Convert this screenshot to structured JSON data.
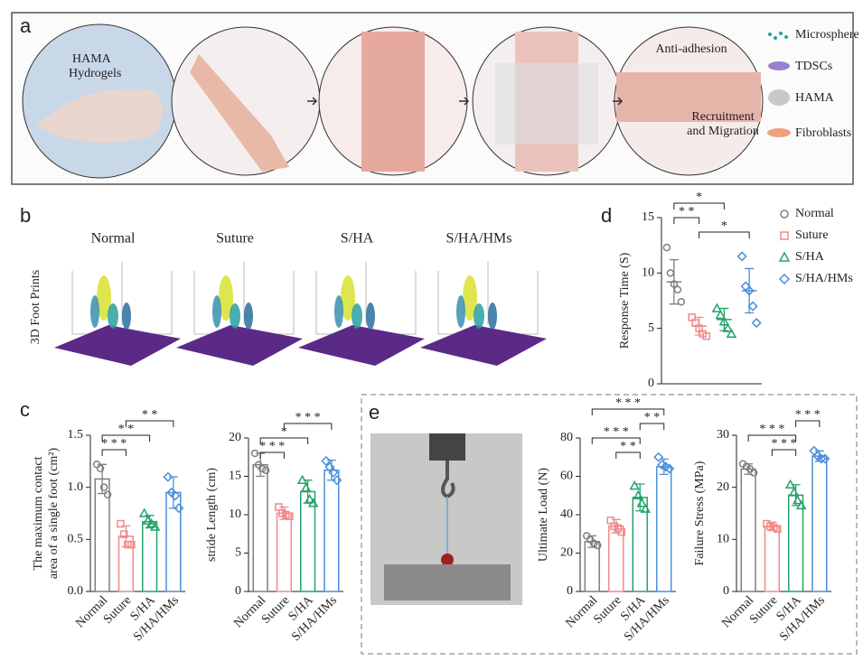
{
  "panel_labels": [
    "a",
    "b",
    "c",
    "d",
    "e"
  ],
  "panel_a": {
    "hydrogel_label": [
      "HAMA",
      "Hydrogels"
    ],
    "anti_adhesion": "Anti-adhesion",
    "recruitment": [
      "Recruitment",
      "and Migration"
    ],
    "legend": [
      "Microsphere",
      "TDSCs",
      "HAMA",
      "Fibroblasts"
    ]
  },
  "panel_b": {
    "row_label": "3D Foot Prints",
    "columns": [
      "Normal",
      "Suture",
      "S/HA",
      "S/HA/HMs"
    ]
  },
  "chart_data": [
    {
      "type": "bar",
      "y_label": [
        "The maximum contact",
        "area of a single foot (cm²)"
      ],
      "categories": [
        "Normal",
        "Suture",
        "S/HA",
        "S/HA/HMs"
      ],
      "colors": [
        "#7f7f7f",
        "#f08a8a",
        "#23a36a",
        "#4a8fd8"
      ],
      "markers": [
        "circle",
        "square",
        "triangle",
        "diamond"
      ],
      "values": [
        1.08,
        0.53,
        0.67,
        0.95
      ],
      "errors": [
        0.14,
        0.1,
        0.06,
        0.15
      ],
      "points": [
        [
          1.22,
          1.18,
          1.0,
          0.93
        ],
        [
          0.65,
          0.55,
          0.45,
          0.45
        ],
        [
          0.75,
          0.68,
          0.65,
          0.62
        ],
        [
          1.1,
          0.95,
          0.92,
          0.8
        ]
      ],
      "ylim": [
        0,
        1.5
      ],
      "yticks": [
        {
          "value": 0,
          "label": "0.0"
        },
        0.5,
        {
          "value": 1,
          "label": "1.0"
        },
        1.5
      ],
      "annotations": [
        {
          "label": "* * *",
          "groups": [
            "Normal",
            "Suture"
          ]
        },
        {
          "label": "* *",
          "groups": [
            "Normal",
            "S/HA"
          ]
        },
        {
          "label": "* *",
          "groups": [
            "Suture",
            "S/HA/HMs"
          ]
        }
      ]
    },
    {
      "type": "bar",
      "y_label": [
        "stride Length (cm)"
      ],
      "categories": [
        "Normal",
        "Suture",
        "S/HA",
        "S/HA/HMs"
      ],
      "colors": [
        "#7f7f7f",
        "#f08a8a",
        "#23a36a",
        "#4a8fd8"
      ],
      "markers": [
        "circle",
        "square",
        "triangle",
        "diamond"
      ],
      "values": [
        16.5,
        10.2,
        13,
        15.8
      ],
      "errors": [
        1.5,
        0.8,
        1.5,
        1.3
      ],
      "points": [
        [
          18,
          16.5,
          16,
          15.8
        ],
        [
          11,
          10.2,
          10,
          9.8
        ],
        [
          14.5,
          13.5,
          12,
          11.5
        ],
        [
          17,
          16.2,
          15.5,
          14.5
        ]
      ],
      "ylim": [
        0,
        20
      ],
      "yticks": [
        0,
        5,
        10,
        15,
        20
      ],
      "annotations": [
        {
          "label": "* * *",
          "groups": [
            "Normal",
            "Suture"
          ]
        },
        {
          "label": "*",
          "groups": [
            "Normal",
            "S/HA"
          ]
        },
        {
          "label": "* * *",
          "groups": [
            "Suture",
            "S/HA/HMs"
          ]
        }
      ]
    },
    {
      "type": "dot",
      "y_label": [
        "Response Time (S)"
      ],
      "legend": "right",
      "categories": [
        "Normal",
        "Suture",
        "S/HA",
        "S/HA/HMs"
      ],
      "colors": [
        "#7f7f7f",
        "#f08a8a",
        "#23a36a",
        "#4a8fd8"
      ],
      "markers": [
        "circle",
        "square",
        "triangle",
        "diamond"
      ],
      "values": [
        9.2,
        5.2,
        5.8,
        8.4
      ],
      "errors": [
        2,
        0.8,
        1,
        2
      ],
      "points": [
        [
          12.3,
          10,
          9,
          8.5,
          7.4
        ],
        [
          6,
          5.5,
          5,
          4.5,
          4.3
        ],
        [
          6.8,
          6.2,
          5.6,
          5,
          4.5
        ],
        [
          11.5,
          8.8,
          8.4,
          7,
          5.5
        ]
      ],
      "ylim": [
        0,
        15
      ],
      "yticks": [
        0,
        5,
        10,
        15
      ],
      "annotations": [
        {
          "label": "*",
          "groups": [
            "Suture",
            "S/HA/HMs"
          ]
        },
        {
          "label": "* *",
          "groups": [
            "Normal",
            "Suture"
          ]
        },
        {
          "label": "*",
          "groups": [
            "Normal",
            "S/HA"
          ]
        }
      ]
    },
    {
      "type": "bar",
      "y_label": [
        "Ultimate Load (N)"
      ],
      "categories": [
        "Normal",
        "Suture",
        "S/HA",
        "S/HA/HMs"
      ],
      "colors": [
        "#7f7f7f",
        "#f08a8a",
        "#23a36a",
        "#4a8fd8"
      ],
      "markers": [
        "circle",
        "square",
        "triangle",
        "diamond"
      ],
      "values": [
        26,
        34,
        49,
        65
      ],
      "errors": [
        3,
        3.5,
        7,
        4
      ],
      "points": [
        [
          29,
          27,
          25,
          24
        ],
        [
          37,
          34,
          33,
          31
        ],
        [
          55,
          50,
          46,
          43
        ],
        [
          70,
          66,
          65,
          64
        ]
      ],
      "ylim": [
        0,
        80
      ],
      "yticks": [
        0,
        20,
        40,
        60,
        80
      ],
      "annotations": [
        {
          "label": "* *",
          "groups": [
            "Suture",
            "S/HA"
          ]
        },
        {
          "label": "* * *",
          "groups": [
            "Normal",
            "S/HA"
          ]
        },
        {
          "label": "* *",
          "groups": [
            "S/HA",
            "S/HA/HMs"
          ]
        },
        {
          "label": "* * *",
          "groups": [
            "Normal",
            "S/HA/HMs"
          ]
        }
      ]
    },
    {
      "type": "bar",
      "y_label": [
        "Failure Stress (MPa)"
      ],
      "categories": [
        "Normal",
        "Suture",
        "S/HA",
        "S/HA/HMs"
      ],
      "colors": [
        "#7f7f7f",
        "#f08a8a",
        "#23a36a",
        "#4a8fd8"
      ],
      "markers": [
        "circle",
        "square",
        "triangle",
        "diamond"
      ],
      "values": [
        23.5,
        12.5,
        18.5,
        26
      ],
      "errors": [
        1,
        0.8,
        2,
        1
      ],
      "points": [
        [
          24.5,
          24,
          23.5,
          22.8
        ],
        [
          13,
          12.5,
          12.3,
          12
        ],
        [
          20.5,
          19,
          17.5,
          16.5
        ],
        [
          27,
          26,
          25.5,
          25.5
        ]
      ],
      "ylim": [
        0,
        30
      ],
      "yticks": [
        0,
        10,
        20,
        30
      ],
      "annotations": [
        {
          "label": "* * *",
          "groups": [
            "Suture",
            "S/HA"
          ]
        },
        {
          "label": "* * *",
          "groups": [
            "Normal",
            "S/HA"
          ]
        },
        {
          "label": "* * *",
          "groups": [
            "S/HA",
            "S/HA/HMs"
          ]
        }
      ]
    }
  ]
}
